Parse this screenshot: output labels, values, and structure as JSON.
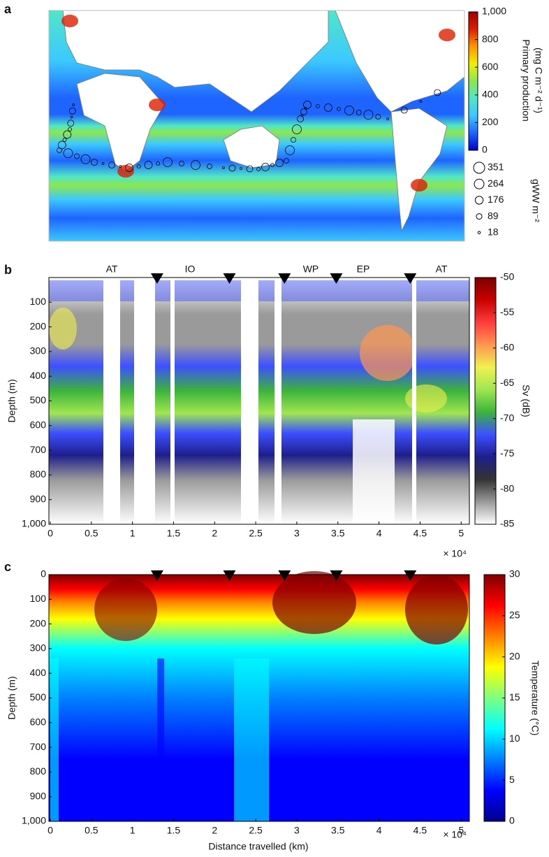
{
  "chart_data": [
    {
      "type": "map",
      "panel_label": "a",
      "colorbar_label": [
        "Primary production",
        "(mg C m⁻² d⁻¹)"
      ],
      "colorbar_lim": [
        0,
        1000
      ],
      "colorbar_ticks": [
        0,
        200,
        400,
        600,
        800,
        {
          "value": 1000,
          "label": "1,000"
        }
      ],
      "colormap": [
        "#0000c8",
        "#1e64ff",
        "#3cc8ff",
        "#50e6c8",
        "#8ce650",
        "#f0f000",
        "#ff9600",
        "#dc1e00",
        "#a00000"
      ],
      "size_legend": {
        "label": "gWW m⁻²",
        "values": [
          351,
          264,
          176,
          89,
          18
        ]
      }
    },
    {
      "type": "heatmap",
      "panel_label": "b",
      "ylabel": "Depth (m)",
      "xlim": [
        0,
        5.1
      ],
      "xticks": [
        0,
        0.5,
        1,
        1.5,
        2,
        2.5,
        3,
        3.5,
        4,
        4.5,
        5
      ],
      "x_multiplier": "× 10⁴",
      "ylim": [
        0,
        1000
      ],
      "y_inverted": true,
      "yticks": [
        100,
        200,
        300,
        400,
        500,
        600,
        700,
        800,
        900,
        {
          "value": 1000,
          "label": "1,000"
        }
      ],
      "regions": [
        "AT",
        "IO",
        "WP",
        "EP",
        "AT"
      ],
      "section_breaks": [
        1.3,
        2.18,
        2.85,
        3.48,
        4.38
      ],
      "colorbar_label": "Sv (dB)",
      "colorbar_lim": [
        -85,
        -50
      ],
      "colorbar_ticks": [
        -85,
        -80,
        -75,
        -70,
        -65,
        -60,
        -55,
        -50
      ],
      "colormap": [
        "#ffffff",
        "#9a9a9a",
        "#333333",
        "#1e1e8c",
        "#3c50ff",
        "#3cb43c",
        "#a0e650",
        "#f0f050",
        "#ff9650",
        "#ff3c3c",
        "#c80000",
        "#7a0000"
      ]
    },
    {
      "type": "heatmap",
      "panel_label": "c",
      "ylabel": "Depth (m)",
      "xlabel": "Distance travelled (km)",
      "xlim": [
        0,
        5.1
      ],
      "xticks": [
        0,
        0.5,
        1,
        1.5,
        2,
        2.5,
        3,
        3.5,
        4,
        4.5,
        5
      ],
      "x_multiplier": "× 10⁴",
      "ylim": [
        0,
        1000
      ],
      "y_inverted": true,
      "yticks": [
        0,
        100,
        200,
        300,
        400,
        500,
        600,
        700,
        800,
        900,
        {
          "value": 1000,
          "label": "1,000"
        }
      ],
      "section_breaks": [
        1.3,
        2.18,
        2.85,
        3.48,
        4.38
      ],
      "colorbar_label": "Temperature (°C)",
      "colorbar_lim": [
        0,
        30
      ],
      "colorbar_ticks": [
        0,
        5,
        10,
        15,
        20,
        25,
        30
      ],
      "colormap": [
        "#00008c",
        "#0000ff",
        "#0080ff",
        "#00ffff",
        "#80ff80",
        "#ffff00",
        "#ff8000",
        "#ff0000",
        "#800000"
      ]
    }
  ]
}
